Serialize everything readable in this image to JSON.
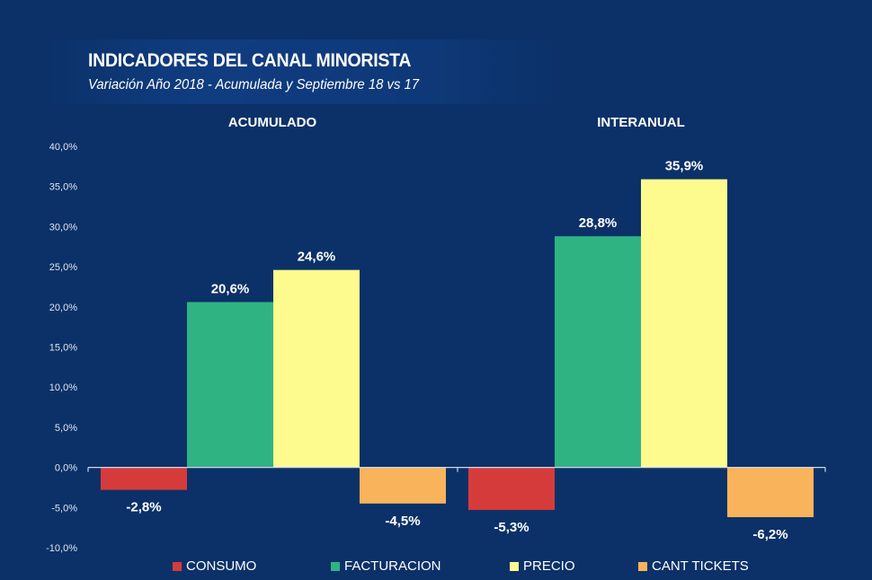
{
  "header": {
    "title": "INDICADORES DEL CANAL MINORISTA",
    "subtitle": "Variación Año 2018 - Acumulada y Septiembre 18 vs 17"
  },
  "chart_data": {
    "type": "bar",
    "title": "INDICADORES DEL CANAL MINORISTA",
    "subtitle": "Variación Año 2018 - Acumulada y Septiembre 18 vs 17",
    "xlabel": "",
    "ylabel": "",
    "categories": [
      "ACUMULADO",
      "INTERANUAL"
    ],
    "series": [
      {
        "name": "CONSUMO",
        "color": "#d63b3b",
        "values": [
          -2.8,
          -5.3
        ],
        "labels": [
          "-2,8%",
          "-5,3%"
        ]
      },
      {
        "name": "FACTURACION",
        "color": "#2fb383",
        "values": [
          20.6,
          28.8
        ],
        "labels": [
          "20,6%",
          "28,8%"
        ]
      },
      {
        "name": "PRECIO",
        "color": "#fdfb8e",
        "values": [
          24.6,
          35.9
        ],
        "labels": [
          "24,6%",
          "35,9%"
        ]
      },
      {
        "name": "CANT TICKETS",
        "color": "#f9b35a",
        "values": [
          -4.5,
          -6.2
        ],
        "labels": [
          "-4,5%",
          "-6,2%"
        ]
      }
    ],
    "ylim": [
      -10,
      40
    ],
    "yticks": [
      40,
      35,
      30,
      25,
      20,
      15,
      10,
      5,
      0,
      -5,
      -10
    ],
    "ytick_labels": [
      "40,0%",
      "35,0%",
      "30,0%",
      "25,0%",
      "20,0%",
      "15,0%",
      "10,0%",
      "5,0%",
      "0,0%",
      "-5,0%",
      "-10,0%"
    ],
    "grid": false,
    "legend_position": "bottom"
  }
}
